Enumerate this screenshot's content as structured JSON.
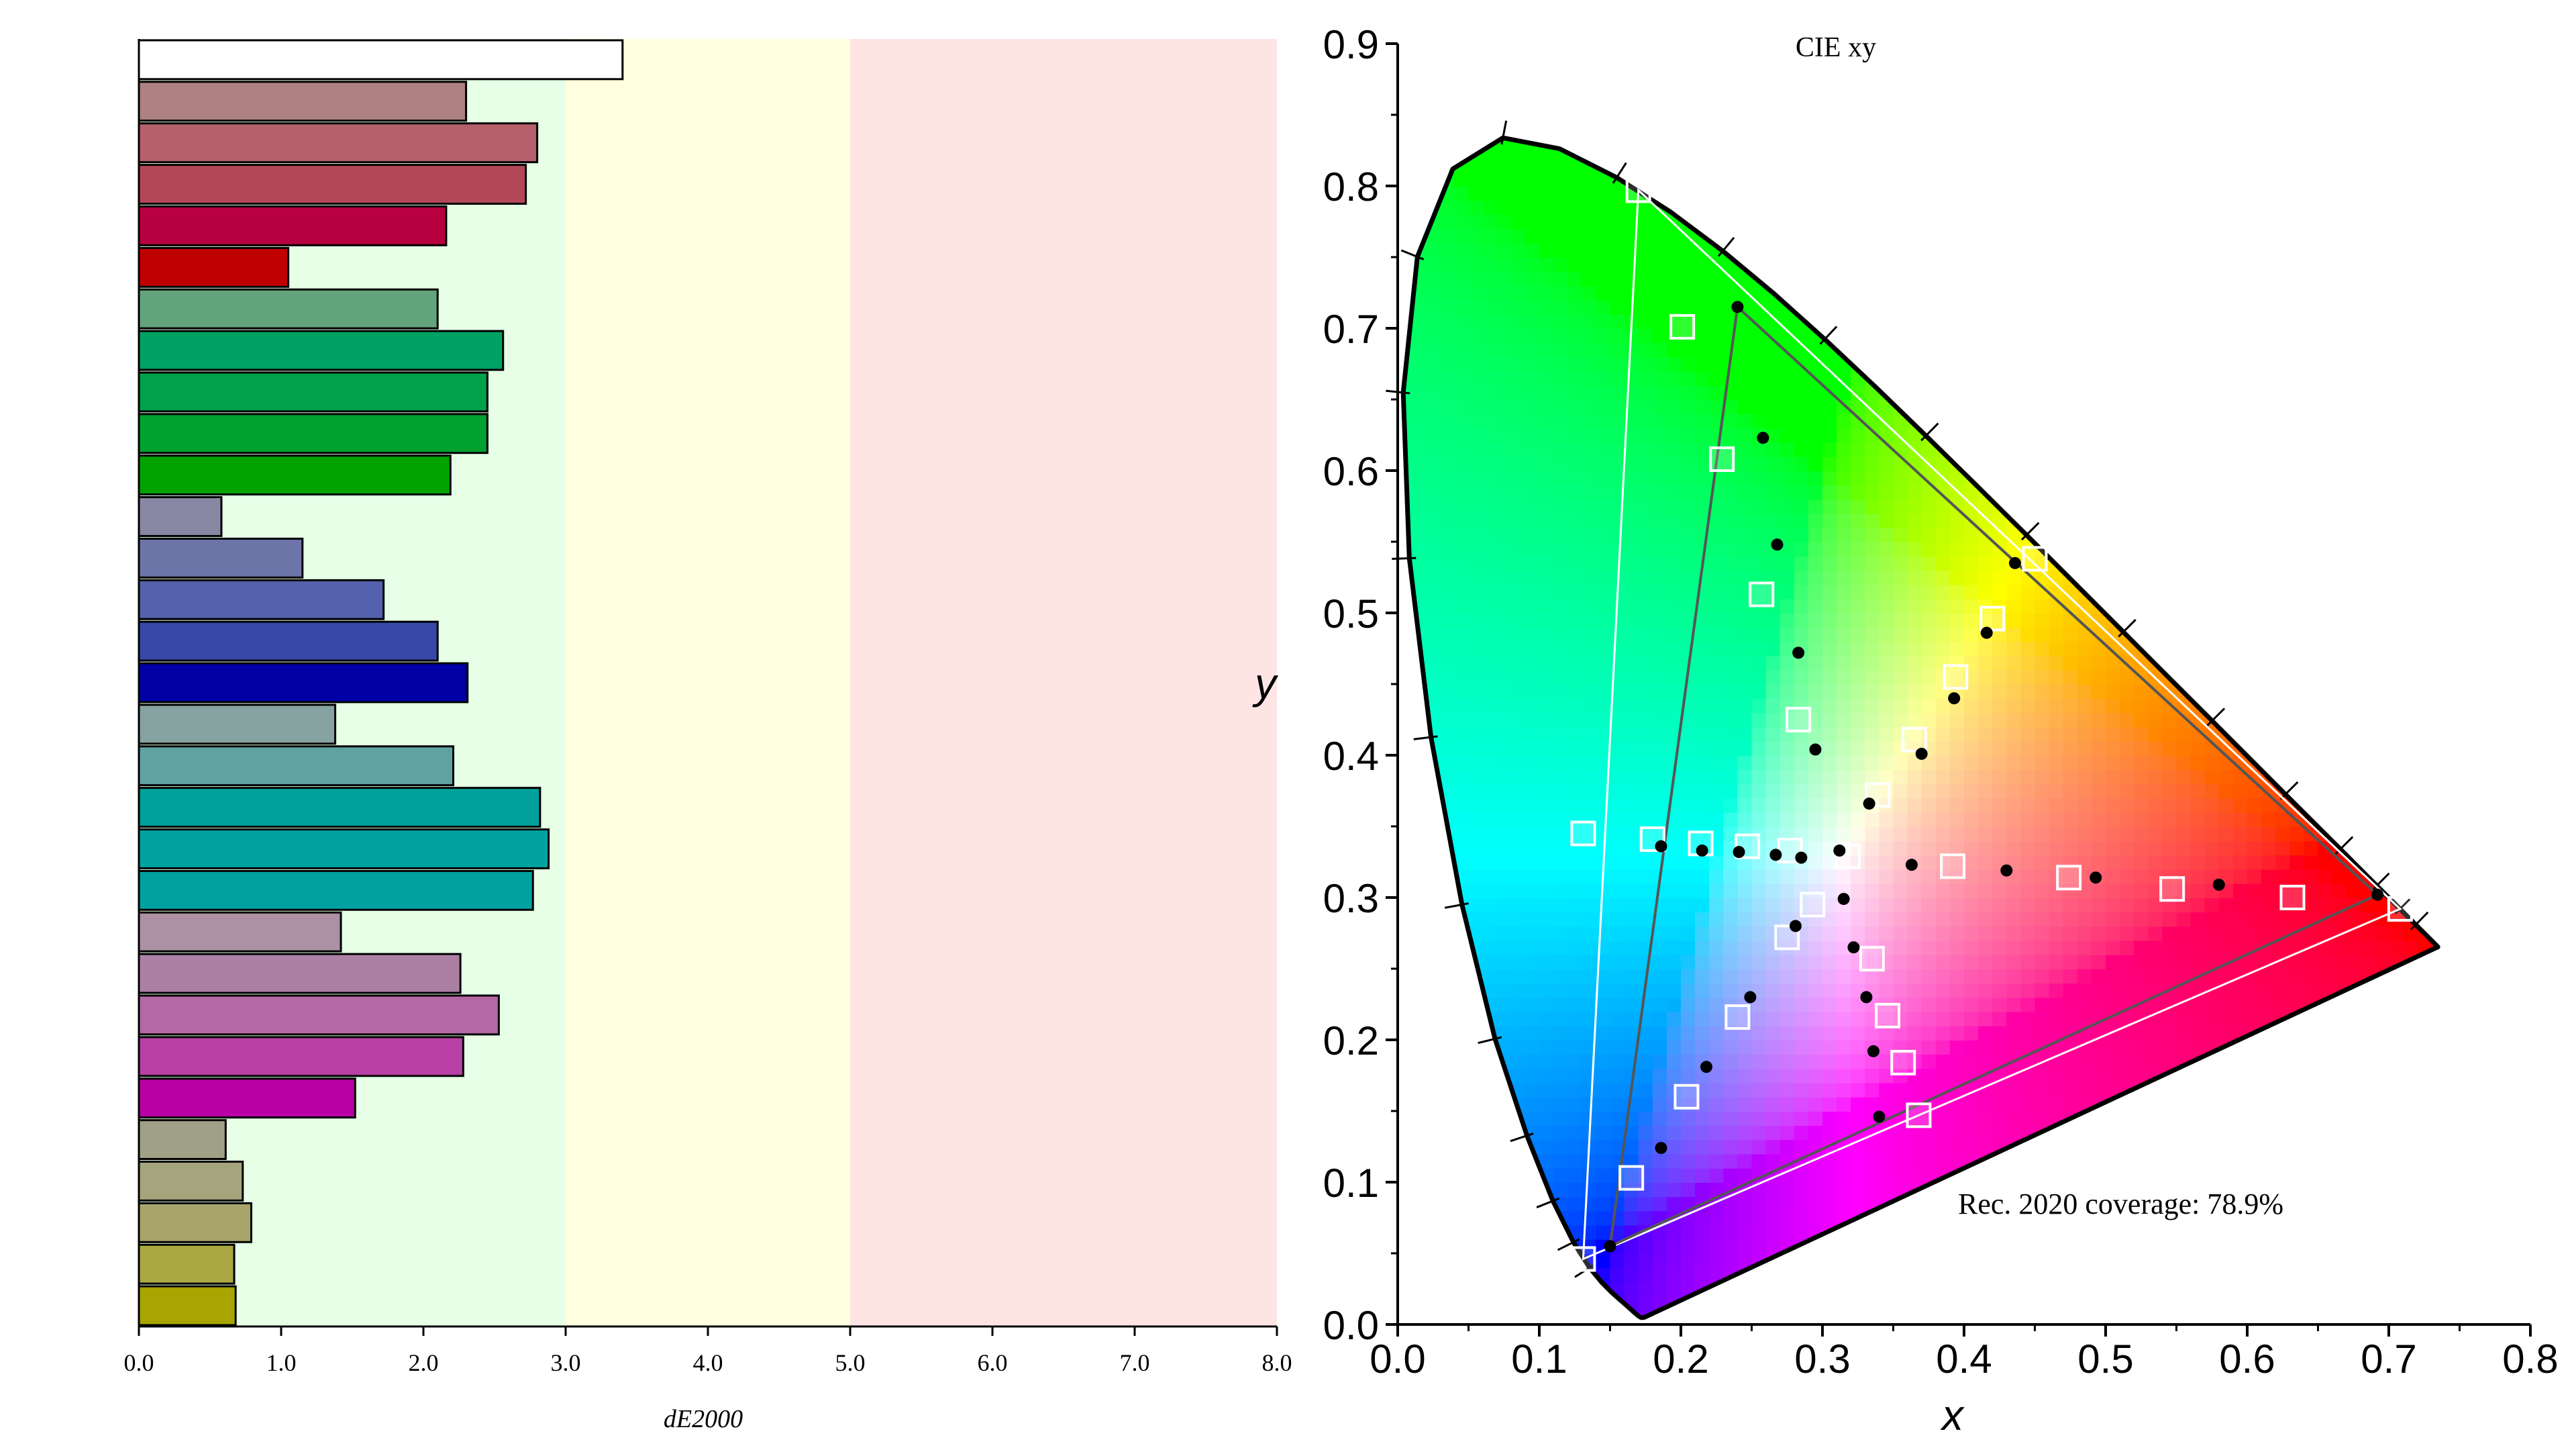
{
  "bar_chart": {
    "xlabel": "dE2000",
    "xlim": [
      0,
      8
    ],
    "xticks": [
      "0.0",
      "1.0",
      "2.0",
      "3.0",
      "4.0",
      "5.0",
      "6.0",
      "7.0",
      "8.0"
    ],
    "zones": [
      {
        "from": 0,
        "to": 3,
        "color": "#e6ffe6"
      },
      {
        "from": 3,
        "to": 5,
        "color": "#ffffe0"
      },
      {
        "from": 5,
        "to": 8,
        "color": "#ffe4e4"
      }
    ]
  },
  "cie_chart": {
    "title": "CIE xy",
    "xlabel": "x",
    "ylabel": "y",
    "xticks": [
      "0.0",
      "0.1",
      "0.2",
      "0.3",
      "0.4",
      "0.5",
      "0.6",
      "0.7",
      "0.8"
    ],
    "yticks": [
      "0.0",
      "0.1",
      "0.2",
      "0.3",
      "0.4",
      "0.5",
      "0.6",
      "0.7",
      "0.8",
      "0.9"
    ],
    "coverage_label": "Rec. 2020 coverage: 78.9%"
  },
  "chart_data": [
    {
      "type": "bar",
      "orientation": "horizontal",
      "xlabel": "dE2000",
      "xlim": [
        0,
        8
      ],
      "values": [
        3.4,
        2.3,
        2.8,
        2.72,
        2.16,
        1.05,
        2.1,
        2.56,
        2.45,
        2.45,
        2.19,
        0.58,
        1.15,
        1.72,
        2.1,
        2.31,
        1.38,
        2.21,
        2.82,
        2.88,
        2.77,
        1.42,
        2.26,
        2.53,
        2.28,
        1.52,
        0.61,
        0.73,
        0.79,
        0.67,
        0.68
      ],
      "bar_colors": [
        "#ffffff",
        "#ad8081",
        "#b5606b",
        "#b44859",
        "#b6003f",
        "#c00000",
        "#64a47c",
        "#00a264",
        "#00a14b",
        "#00a12e",
        "#00a200",
        "#8888a4",
        "#6c74a8",
        "#5461ac",
        "#3848a8",
        "#0000a6",
        "#86a2a1",
        "#60a2a1",
        "#00a19b",
        "#00a3a2",
        "#00a1a0",
        "#ac90a4",
        "#ac80a4",
        "#b468a4",
        "#b840a4",
        "#b800a4",
        "#a0a086",
        "#a6a47c",
        "#a8a46c",
        "#aaa840",
        "#a8a400"
      ]
    },
    {
      "type": "scatter",
      "title": "CIE xy",
      "xlabel": "x",
      "ylabel": "y",
      "xlim": [
        0,
        0.8
      ],
      "ylim": [
        0,
        0.9
      ],
      "note": "Rec. 2020 coverage: 78.9%",
      "series": [
        {
          "role": "target-points",
          "marker": "square",
          "points": [
            [
              0.17,
              0.797
            ],
            [
              0.201,
              0.701
            ],
            [
              0.229,
              0.608
            ],
            [
              0.257,
              0.513
            ],
            [
              0.283,
              0.425
            ],
            [
              0.131,
              0.046
            ],
            [
              0.165,
              0.103
            ],
            [
              0.204,
              0.16
            ],
            [
              0.24,
              0.216
            ],
            [
              0.275,
              0.272
            ],
            [
              0.318,
              0.329
            ],
            [
              0.293,
              0.295
            ],
            [
              0.131,
              0.345
            ],
            [
              0.18,
              0.341
            ],
            [
              0.214,
              0.338
            ],
            [
              0.247,
              0.336
            ],
            [
              0.277,
              0.333
            ],
            [
              0.708,
              0.292
            ],
            [
              0.632,
              0.3
            ],
            [
              0.547,
              0.306
            ],
            [
              0.474,
              0.314
            ],
            [
              0.392,
              0.322
            ],
            [
              0.45,
              0.538
            ],
            [
              0.42,
              0.496
            ],
            [
              0.394,
              0.455
            ],
            [
              0.365,
              0.411
            ],
            [
              0.339,
              0.372
            ],
            [
              0.368,
              0.147
            ],
            [
              0.357,
              0.184
            ],
            [
              0.346,
              0.217
            ],
            [
              0.335,
              0.257
            ]
          ]
        },
        {
          "role": "measured-points",
          "marker": "dot",
          "points": [
            [
              0.24,
              0.715
            ],
            [
              0.258,
              0.623
            ],
            [
              0.268,
              0.548
            ],
            [
              0.283,
              0.472
            ],
            [
              0.295,
              0.404
            ],
            [
              0.15,
              0.055
            ],
            [
              0.186,
              0.124
            ],
            [
              0.218,
              0.181
            ],
            [
              0.249,
              0.23
            ],
            [
              0.281,
              0.28
            ],
            [
              0.312,
              0.333
            ],
            [
              0.315,
              0.299
            ],
            [
              0.186,
              0.336
            ],
            [
              0.215,
              0.333
            ],
            [
              0.241,
              0.332
            ],
            [
              0.267,
              0.33
            ],
            [
              0.285,
              0.328
            ],
            [
              0.692,
              0.302
            ],
            [
              0.58,
              0.309
            ],
            [
              0.493,
              0.314
            ],
            [
              0.43,
              0.319
            ],
            [
              0.363,
              0.323
            ],
            [
              0.436,
              0.535
            ],
            [
              0.416,
              0.486
            ],
            [
              0.393,
              0.44
            ],
            [
              0.37,
              0.401
            ],
            [
              0.333,
              0.366
            ],
            [
              0.34,
              0.146
            ],
            [
              0.336,
              0.192
            ],
            [
              0.331,
              0.23
            ],
            [
              0.322,
              0.265
            ]
          ]
        },
        {
          "role": "target-gamut",
          "points": [
            [
              0.708,
              0.292
            ],
            [
              0.17,
              0.797
            ],
            [
              0.131,
              0.046
            ]
          ]
        },
        {
          "role": "measured-gamut",
          "points": [
            [
              0.692,
              0.302
            ],
            [
              0.24,
              0.715
            ],
            [
              0.15,
              0.055
            ]
          ]
        }
      ]
    }
  ]
}
